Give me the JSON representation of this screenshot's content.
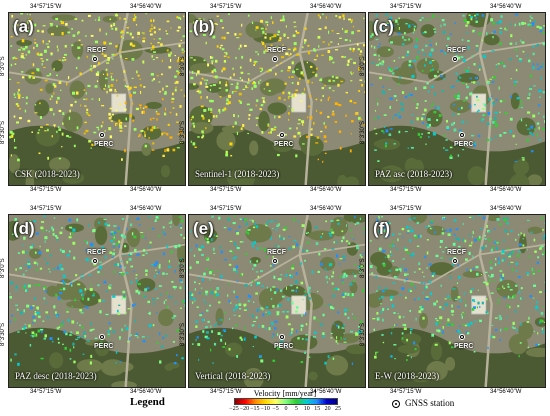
{
  "panels": [
    {
      "letter": "(a)",
      "label": "CSK (2018-2023)",
      "palette": "warm"
    },
    {
      "letter": "(b)",
      "label": "Sentinel-1 (2018-2023)",
      "palette": "warm"
    },
    {
      "letter": "(c)",
      "label": "PAZ asc (2018-2023)",
      "palette": "cool"
    },
    {
      "letter": "(d)",
      "label": "PAZ desc (2018-2023)",
      "palette": "cool"
    },
    {
      "letter": "(e)",
      "label": "Vertical (2018-2023)",
      "palette": "cool"
    },
    {
      "letter": "(f)",
      "label": "E-W (2018-2023)",
      "palette": "cool"
    }
  ],
  "stations": {
    "north": "RECF",
    "south": "PERC"
  },
  "longitude_ticks": [
    "34°57'15\"W",
    "34°56'40\"W"
  ],
  "latitude_ticks": [
    "8°3'0\"S",
    "8°3'30\"S"
  ],
  "legend": {
    "title": "Legend",
    "velocity_title": "Velocity [mm/year]",
    "ticks": [
      "−25",
      "−20",
      "−15",
      "−10",
      "−5",
      "0",
      "5",
      "10",
      "15",
      "20",
      "25"
    ],
    "gnss_label": "GNSS station",
    "colors": [
      "#8b0000",
      "#ff0000",
      "#ff8c00",
      "#ffd700",
      "#ffff66",
      "#7fff7f",
      "#32cd32",
      "#00ced1",
      "#1e90ff",
      "#0000cd",
      "#00008b"
    ]
  }
}
